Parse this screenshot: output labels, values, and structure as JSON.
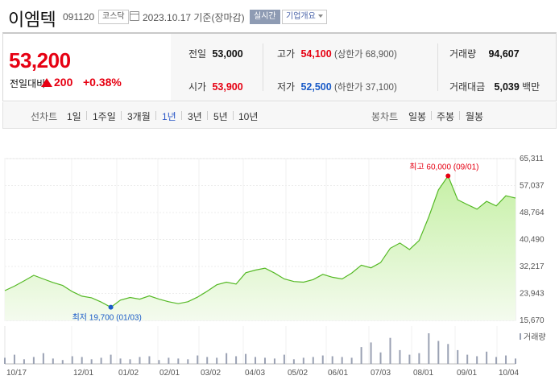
{
  "header": {
    "name": "이엠텍",
    "code": "091120",
    "market": "코스닥",
    "date": "2023.10.17 기준(장마감)",
    "realtime": "실시간",
    "company": "기업개요"
  },
  "price": {
    "current": "53,200",
    "compare_label": "전일대비",
    "change": "200",
    "change_pct": "+0.38%",
    "direction": "up"
  },
  "stats": {
    "prev_label": "전일",
    "prev": "53,000",
    "high_label": "고가",
    "high": "54,100",
    "upper_limit": "(상한가 68,900)",
    "volume_label": "거래량",
    "volume": "94,607",
    "open_label": "시가",
    "open": "53,900",
    "low_label": "저가",
    "low": "52,500",
    "lower_limit": "(하한가 37,100)",
    "amount_label": "거래대금",
    "amount": "5,039",
    "amount_unit": "백만"
  },
  "tabs": {
    "line_label": "선차트",
    "periods": [
      "1일",
      "1주일",
      "3개월",
      "1년",
      "3년",
      "5년",
      "10년"
    ],
    "active": "1년",
    "candle_label": "봉차트",
    "candles": [
      "일봉",
      "주봉",
      "월봉"
    ]
  },
  "colors": {
    "up": "#e60012",
    "down": "#1b5cc8",
    "line": "#55b925",
    "fill": "#c6f0a6"
  },
  "chart_data": {
    "type": "area",
    "yticks": [
      "65,311",
      "57,037",
      "48,764",
      "40,490",
      "32,217",
      "23,943",
      "15,670"
    ],
    "ylim": [
      15670,
      65311
    ],
    "xticks": [
      "10/17",
      "12/01",
      "01/02",
      "02/01",
      "03/02",
      "04/03",
      "05/02",
      "06/01",
      "07/03",
      "08/01",
      "09/01",
      "10/04"
    ],
    "high_label": "최고 60,000 (09/01)",
    "high_value": 60000,
    "low_label": "최저 19,700 (01/03)",
    "low_value": 19700,
    "volume_label": "거래량",
    "x": [
      "10/17",
      "10/24",
      "10/31",
      "11/07",
      "11/14",
      "11/21",
      "11/28",
      "12/05",
      "12/12",
      "12/19",
      "12/26",
      "01/03",
      "01/09",
      "01/16",
      "01/23",
      "01/30",
      "02/06",
      "02/13",
      "02/20",
      "02/27",
      "03/06",
      "03/13",
      "03/20",
      "03/27",
      "04/03",
      "04/10",
      "04/17",
      "04/24",
      "05/01",
      "05/08",
      "05/15",
      "05/22",
      "05/29",
      "06/05",
      "06/12",
      "06/19",
      "06/26",
      "07/03",
      "07/10",
      "07/17",
      "07/24",
      "07/31",
      "08/07",
      "08/14",
      "08/21",
      "08/28",
      "09/01",
      "09/08",
      "09/15",
      "09/22",
      "09/29",
      "10/06",
      "10/13",
      "10/17"
    ],
    "values": [
      24800,
      26200,
      27800,
      29500,
      28400,
      27300,
      26400,
      24500,
      23100,
      22600,
      21300,
      19700,
      21900,
      22700,
      22200,
      23200,
      22200,
      21400,
      20800,
      21400,
      22800,
      24600,
      26600,
      27400,
      26800,
      30300,
      31100,
      31700,
      30200,
      28400,
      27600,
      27400,
      28200,
      29800,
      28900,
      28400,
      30200,
      32600,
      31800,
      33400,
      37800,
      39400,
      37400,
      40200,
      47400,
      55700,
      60000,
      52700,
      51200,
      49800,
      52200,
      50800,
      53900,
      53200
    ],
    "volume": [
      8,
      12,
      6,
      9,
      14,
      7,
      5,
      10,
      9,
      6,
      8,
      12,
      7,
      6,
      9,
      10,
      5,
      8,
      7,
      6,
      11,
      9,
      8,
      14,
      10,
      13,
      9,
      8,
      7,
      12,
      6,
      8,
      9,
      11,
      10,
      9,
      8,
      22,
      28,
      15,
      34,
      18,
      12,
      14,
      40,
      30,
      26,
      18,
      12,
      10,
      16,
      9,
      11,
      7
    ]
  }
}
